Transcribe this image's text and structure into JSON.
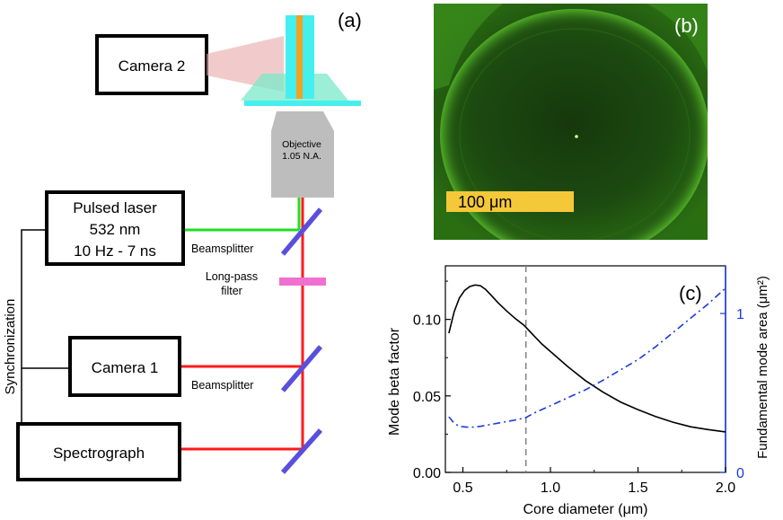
{
  "panel_a": {
    "label": "(a)",
    "camera2": "Camera 2",
    "objective_line1": "Objective",
    "objective_line2": "1.05 N.A.",
    "laser_line1": "Pulsed laser",
    "laser_line2": "532 nm",
    "laser_line3": "10 Hz - 7 ns",
    "beamsplitter_top": "Beamsplitter",
    "longpass_line1": "Long-pass",
    "longpass_line2": "filter",
    "camera1": "Camera 1",
    "beamsplitter_mid": "Beamsplitter",
    "spectrograph": "Spectrograph",
    "synchronization": "Synchronization"
  },
  "panel_b": {
    "label": "(b)",
    "scalebar": "100 μm"
  },
  "colors": {
    "laser_green": "#22dd22",
    "signal_red": "#ff1a1a",
    "mirror": "#5a4fdc",
    "filter": "#f070d0",
    "sample_cyan": "#44f0ee",
    "core_orange": "#f5a020",
    "objective_gray": "#bdbdbd",
    "beta_curve": "#000000",
    "area_curve": "#1a3adf",
    "scalebar_yellow": "#f5c83a"
  },
  "chart_data": {
    "type": "line",
    "label": "(c)",
    "xlabel": "Core diameter (μm)",
    "ylabel": "Mode beta factor",
    "y2label": "Fundamental mode area (μm²)",
    "xlim": [
      0.4,
      2.0
    ],
    "ylim": [
      0.0,
      0.135
    ],
    "y2lim": [
      0.0,
      1.3
    ],
    "xticks": [
      "0.5",
      "1.0",
      "1.5",
      "2.0"
    ],
    "yticks": [
      "0.00",
      "0.05",
      "0.10"
    ],
    "y2ticks": [
      "0",
      "1"
    ],
    "vline_x": 0.86,
    "series": [
      {
        "name": "Mode beta factor",
        "axis": "left",
        "style": "solid",
        "x": [
          0.42,
          0.45,
          0.48,
          0.51,
          0.54,
          0.57,
          0.6,
          0.63,
          0.66,
          0.7,
          0.75,
          0.8,
          0.85,
          0.9,
          0.95,
          1.0,
          1.1,
          1.2,
          1.3,
          1.4,
          1.5,
          1.6,
          1.7,
          1.8,
          1.9,
          2.0
        ],
        "y": [
          0.091,
          0.105,
          0.114,
          0.119,
          0.1215,
          0.1225,
          0.122,
          0.1195,
          0.116,
          0.111,
          0.1055,
          0.1005,
          0.096,
          0.09,
          0.084,
          0.079,
          0.069,
          0.06,
          0.0525,
          0.046,
          0.041,
          0.0365,
          0.0328,
          0.0298,
          0.028,
          0.0265
        ]
      },
      {
        "name": "Fundamental mode area",
        "axis": "right",
        "style": "dashdot",
        "x": [
          0.42,
          0.45,
          0.48,
          0.52,
          0.56,
          0.6,
          0.65,
          0.7,
          0.75,
          0.8,
          0.86,
          0.9,
          1.0,
          1.1,
          1.2,
          1.3,
          1.4,
          1.5,
          1.6,
          1.7,
          1.8,
          1.9,
          2.0
        ],
        "y": [
          0.35,
          0.31,
          0.29,
          0.285,
          0.285,
          0.29,
          0.3,
          0.31,
          0.32,
          0.33,
          0.345,
          0.37,
          0.42,
          0.47,
          0.52,
          0.58,
          0.645,
          0.71,
          0.79,
          0.88,
          0.97,
          1.06,
          1.16
        ]
      }
    ]
  }
}
